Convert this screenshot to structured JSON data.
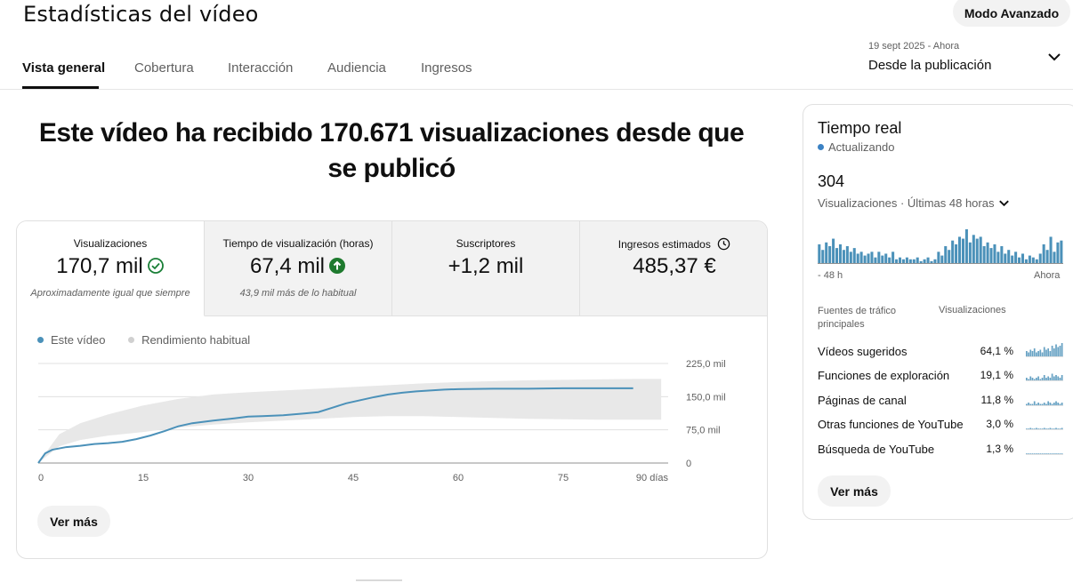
{
  "header": {
    "title": "Estadísticas del vídeo",
    "advanced_label": "Modo Avanzado"
  },
  "tabs": [
    {
      "label": "Vista general",
      "active": true
    },
    {
      "label": "Cobertura"
    },
    {
      "label": "Interacción"
    },
    {
      "label": "Audiencia"
    },
    {
      "label": "Ingresos"
    }
  ],
  "date_range": {
    "dates": "19 sept 2025 - Ahora",
    "label": "Desde la publicación"
  },
  "headline": "Este vídeo ha recibido 170.671 visualizaciones desde que se publicó",
  "metrics": [
    {
      "label": "Visualizaciones",
      "value": "170,7 mil",
      "sub": "Aproximadamente igual que siempre",
      "status_icon": "check-circle-icon"
    },
    {
      "label": "Tiempo de visualización (horas)",
      "value": "67,4 mil",
      "sub": "43,9 mil más de lo habitual",
      "status_icon": "arrow-up-circle-icon"
    },
    {
      "label": "Suscriptores",
      "value": "+1,2 mil",
      "sub": ""
    },
    {
      "label": "Ingresos estimados",
      "value": "485,37 €",
      "sub": "",
      "status_icon": "clock-icon"
    }
  ],
  "chart": {
    "legend": [
      "Este vídeo",
      "Rendimiento habitual"
    ],
    "see_more": "Ver más"
  },
  "chart_data": {
    "type": "line",
    "xlabel": "",
    "ylabel": "",
    "x_ticks": [
      "0",
      "15",
      "30",
      "45",
      "60",
      "75",
      "90 días"
    ],
    "y_ticks": [
      "0",
      "75,0 mil",
      "150,0 mil",
      "225,0 mil"
    ],
    "xlim": [
      0,
      90
    ],
    "ylim": [
      0,
      225000
    ],
    "series": [
      {
        "name": "Este vídeo",
        "x": [
          0,
          1,
          2,
          4,
          6,
          8,
          10,
          12,
          14,
          16,
          18,
          20,
          22,
          25,
          28,
          30,
          32,
          35,
          38,
          40,
          42,
          44,
          46,
          48,
          50,
          52,
          54,
          56,
          58,
          60,
          65,
          70,
          75,
          80,
          85
        ],
        "y": [
          0,
          22000,
          30000,
          36000,
          39000,
          43000,
          45000,
          48000,
          54000,
          62000,
          72000,
          83000,
          90000,
          96000,
          101000,
          105000,
          106000,
          108000,
          112000,
          115000,
          125000,
          135000,
          142000,
          149000,
          155000,
          159000,
          162000,
          164000,
          166000,
          167000,
          168000,
          168000,
          169000,
          169000,
          169000
        ]
      },
      {
        "name": "Rendimiento habitual",
        "type": "band",
        "x": [
          0,
          3,
          6,
          10,
          15,
          20,
          25,
          30,
          35,
          40,
          45,
          50,
          55,
          60,
          65,
          70,
          75,
          80,
          85,
          89
        ],
        "low": [
          0,
          38000,
          52000,
          62000,
          70000,
          80000,
          87000,
          92000,
          96000,
          100000,
          104000,
          106000,
          106000,
          104000,
          102000,
          100000,
          99000,
          98000,
          98000,
          98000
        ],
        "high": [
          0,
          65000,
          90000,
          110000,
          130000,
          145000,
          155000,
          160000,
          164000,
          168000,
          172000,
          176000,
          180000,
          183000,
          185000,
          187000,
          188000,
          189000,
          190000,
          190000
        ]
      }
    ],
    "legend_position": "top-left",
    "grid": true
  },
  "realtime": {
    "title": "Tiempo real",
    "status": "Actualizando",
    "count": "304",
    "views_label": "Visualizaciones · Últimas 48 horas",
    "axis_left": "- 48 h",
    "axis_right": "Ahora",
    "bars": [
      10,
      7,
      11,
      9,
      13,
      8,
      10,
      7,
      9,
      6,
      8,
      5,
      6,
      4,
      5,
      6,
      3,
      6,
      4,
      5,
      3,
      6,
      2,
      3,
      2,
      3,
      2,
      2,
      3,
      1,
      2,
      3,
      1,
      2,
      6,
      4,
      9,
      7,
      12,
      10,
      14,
      13,
      18,
      11,
      15,
      13,
      14,
      9,
      11,
      8,
      10,
      6,
      9,
      5,
      7,
      4,
      6,
      3,
      5,
      2,
      4,
      3,
      2,
      5,
      10,
      7,
      14,
      6,
      11,
      12
    ],
    "col_source": "Fuentes de tráfico principales",
    "col_views": "Visualizaciones",
    "sources": [
      {
        "name": "Vídeos sugeridos",
        "pct": "64,1 %",
        "spark": [
          4,
          3,
          5,
          4,
          6,
          3,
          4,
          5,
          3,
          7,
          5,
          6,
          4,
          8,
          6,
          9,
          7,
          8,
          10
        ]
      },
      {
        "name": "Funciones de exploración",
        "pct": "19,1 %",
        "spark": [
          2,
          1,
          3,
          2,
          1,
          2,
          3,
          1,
          2,
          4,
          2,
          3,
          2,
          5,
          3,
          4,
          3,
          2,
          4
        ]
      },
      {
        "name": "Páginas de canal",
        "pct": "11,8 %",
        "spark": [
          1,
          2,
          1,
          1,
          3,
          1,
          2,
          1,
          1,
          2,
          1,
          3,
          2,
          1,
          2,
          3,
          2,
          1,
          2
        ]
      },
      {
        "name": "Otras funciones de YouTube",
        "pct": "3,0 %",
        "spark": [
          0.5,
          0.5,
          1,
          0.5,
          0.5,
          1,
          0.5,
          0.5,
          0.5,
          1,
          0.5,
          0.5,
          1,
          0.5,
          0.5,
          1,
          0.5,
          0.5,
          1
        ]
      },
      {
        "name": "Búsqueda de YouTube",
        "pct": "1,3 %",
        "spark": [
          0.5,
          0.5,
          0.5,
          0.5,
          0.5,
          0.5,
          0.5,
          0.5,
          0.5,
          0.5,
          0.5,
          0.5,
          0.5,
          0.5,
          0.5,
          0.5,
          0.5,
          0.5,
          0.5
        ]
      }
    ],
    "see_more": "Ver más"
  },
  "colors": {
    "accent": "#4b91b9",
    "band": "#e8e8e8",
    "check": "#1a7f37",
    "arrow_up": "#1e7a2e",
    "updating_dot": "#3b82c4"
  }
}
